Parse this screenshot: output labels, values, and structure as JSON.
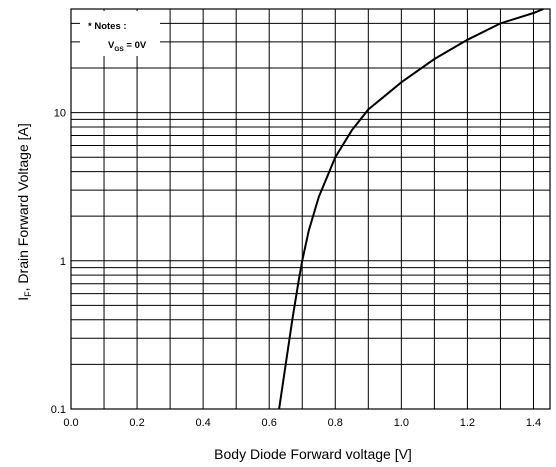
{
  "chart_data": {
    "type": "line",
    "title": "",
    "xlabel": "Body Diode Forward voltage [V]",
    "ylabel": {
      "main": "I",
      "sub": "F",
      "rest": ", Drain Forward Voltage [A]"
    },
    "xlim": [
      0.0,
      1.45
    ],
    "ylim": [
      0.1,
      50
    ],
    "yscale": "log",
    "grid": true,
    "x_ticks": [
      "0.0",
      "0.2",
      "0.4",
      "0.6",
      "0.8",
      "1.0",
      "1.2",
      "1.4"
    ],
    "y_ticks": [
      "0.1",
      "1",
      "10"
    ],
    "notes": {
      "line1": "* Notes :",
      "line2_main": "V",
      "line2_sub": "GS",
      "line2_rest": " = 0V"
    },
    "series": [
      {
        "x": [
          0.63,
          0.65,
          0.67,
          0.69,
          0.7,
          0.72,
          0.75,
          0.8,
          0.85,
          0.9,
          1.0,
          1.1,
          1.2,
          1.3,
          1.4,
          1.43
        ],
        "y": [
          0.1,
          0.2,
          0.4,
          0.75,
          1.0,
          1.6,
          2.7,
          5.0,
          7.6,
          10.5,
          16,
          23,
          31,
          40,
          47,
          50
        ]
      }
    ]
  }
}
